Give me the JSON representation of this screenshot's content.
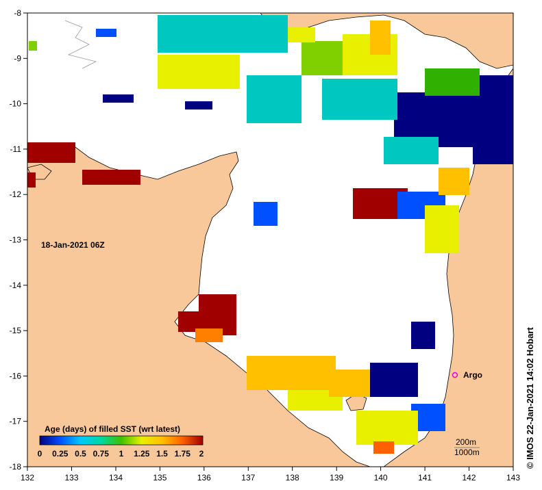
{
  "map": {
    "date_label": "18-Jan-2021 06Z",
    "credit": "© IMOS 22-Jan-2021 14:02 Hobart",
    "colors": {
      "land": "#f9c89a",
      "no_data": "#ffffff",
      "coast": "#000000",
      "argo": "#e000e0"
    },
    "x_ticks": [
      "132",
      "133",
      "134",
      "135",
      "136",
      "137",
      "138",
      "139",
      "140",
      "141",
      "142",
      "143"
    ],
    "y_ticks": [
      "-8",
      "-9",
      "-10",
      "-11",
      "-12",
      "-13",
      "-14",
      "-15",
      "-16",
      "-17",
      "-18"
    ],
    "colorbar": {
      "title": "Age (days) of filled SST (wrt latest)",
      "labels": [
        "0",
        "0.25",
        "0.5",
        "0.75",
        "1",
        "1.25",
        "1.5",
        "1.75",
        "2"
      ],
      "stops": [
        "#000080",
        "#0050ff",
        "#00c8ff",
        "#00d8a0",
        "#40c000",
        "#e8f000",
        "#ffc000",
        "#ff6000",
        "#a00000"
      ]
    },
    "argo_label": "Argo",
    "depth_labels": [
      "200m",
      "1000m"
    ]
  }
}
